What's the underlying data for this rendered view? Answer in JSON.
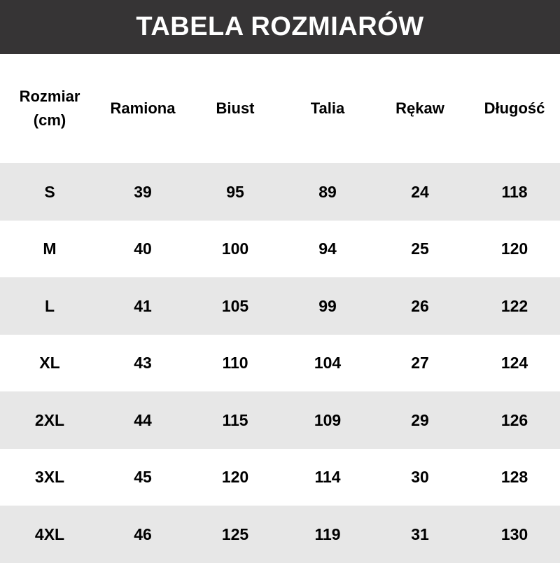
{
  "title": "TABELA ROZMIARÓW",
  "columns": [
    "Rozmiar\n(cm)",
    "Ramiona",
    "Biust",
    "Talia",
    "Rękaw",
    "Długość"
  ],
  "column_lines": {
    "size_line1": "Rozmiar",
    "size_line2": "(cm)"
  },
  "rows": [
    [
      "S",
      "39",
      "95",
      "89",
      "24",
      "118"
    ],
    [
      "M",
      "40",
      "100",
      "94",
      "25",
      "120"
    ],
    [
      "L",
      "41",
      "105",
      "99",
      "26",
      "122"
    ],
    [
      "XL",
      "43",
      "110",
      "104",
      "27",
      "124"
    ],
    [
      "2XL",
      "44",
      "115",
      "109",
      "29",
      "126"
    ],
    [
      "3XL",
      "45",
      "120",
      "114",
      "30",
      "128"
    ],
    [
      "4XL",
      "46",
      "125",
      "119",
      "31",
      "130"
    ]
  ],
  "colors": {
    "title_bar": "#363435",
    "stripe": "#e7e7e7"
  }
}
